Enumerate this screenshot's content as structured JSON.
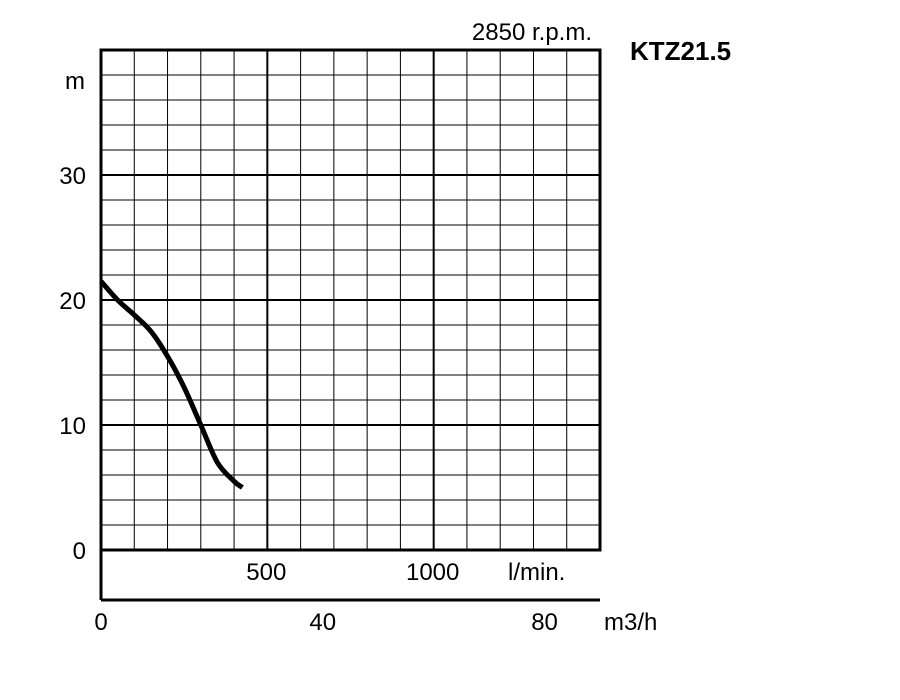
{
  "chart_data": {
    "type": "line",
    "title": "2850 r.p.m.",
    "model": "KTZ21.5",
    "ylabel": "m",
    "ylim": [
      0,
      40
    ],
    "y_ticks": [
      "0",
      "10",
      "20",
      "30"
    ],
    "y_tick_values": [
      0,
      10,
      20,
      30
    ],
    "x_primary": {
      "label": "l/min.",
      "range": [
        0,
        1500
      ],
      "ticks": [
        "500",
        "1000"
      ],
      "tick_values": [
        500,
        1000
      ]
    },
    "x_secondary": {
      "label": "m3/h",
      "range": [
        0,
        90
      ],
      "ticks": [
        "0",
        "40",
        "80"
      ],
      "tick_values": [
        0,
        40,
        80
      ]
    },
    "grid": true,
    "series": [
      {
        "color": "#000000",
        "x": [
          0,
          50,
          100,
          150,
          200,
          250,
          300,
          350,
          400,
          425
        ],
        "y": [
          21.5,
          20.0,
          18.8,
          17.5,
          15.5,
          13.0,
          10.0,
          7.0,
          5.5,
          5.0
        ]
      }
    ]
  }
}
